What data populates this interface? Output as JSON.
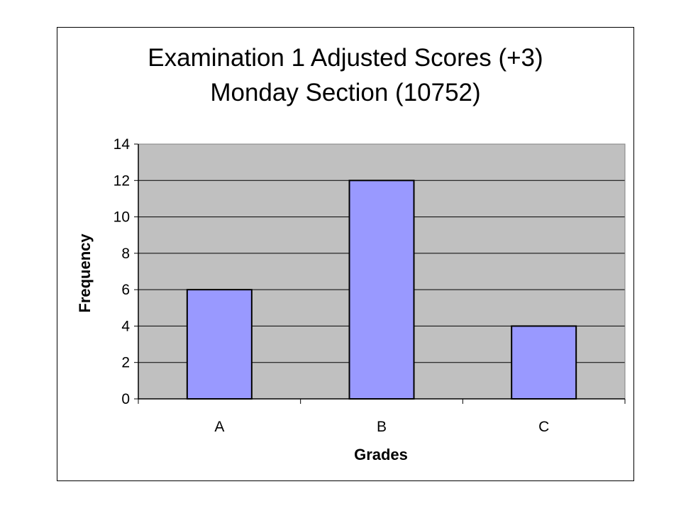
{
  "chart_data": {
    "type": "bar",
    "title": [
      "Examination 1 Adjusted Scores (+3)",
      "Monday Section (10752)"
    ],
    "xlabel": "Grades",
    "ylabel": "Frequency",
    "categories": [
      "A",
      "B",
      "C"
    ],
    "values": [
      6,
      12,
      4
    ],
    "ylim": [
      0,
      14
    ],
    "yticks": [
      "0",
      "2",
      "4",
      "6",
      "8",
      "10",
      "12",
      "14"
    ],
    "grid": true,
    "legend": "none",
    "colors": {
      "bar_fill": "#9999ff",
      "plot_background": "#c0c0c0",
      "gridline": "#000000"
    }
  }
}
